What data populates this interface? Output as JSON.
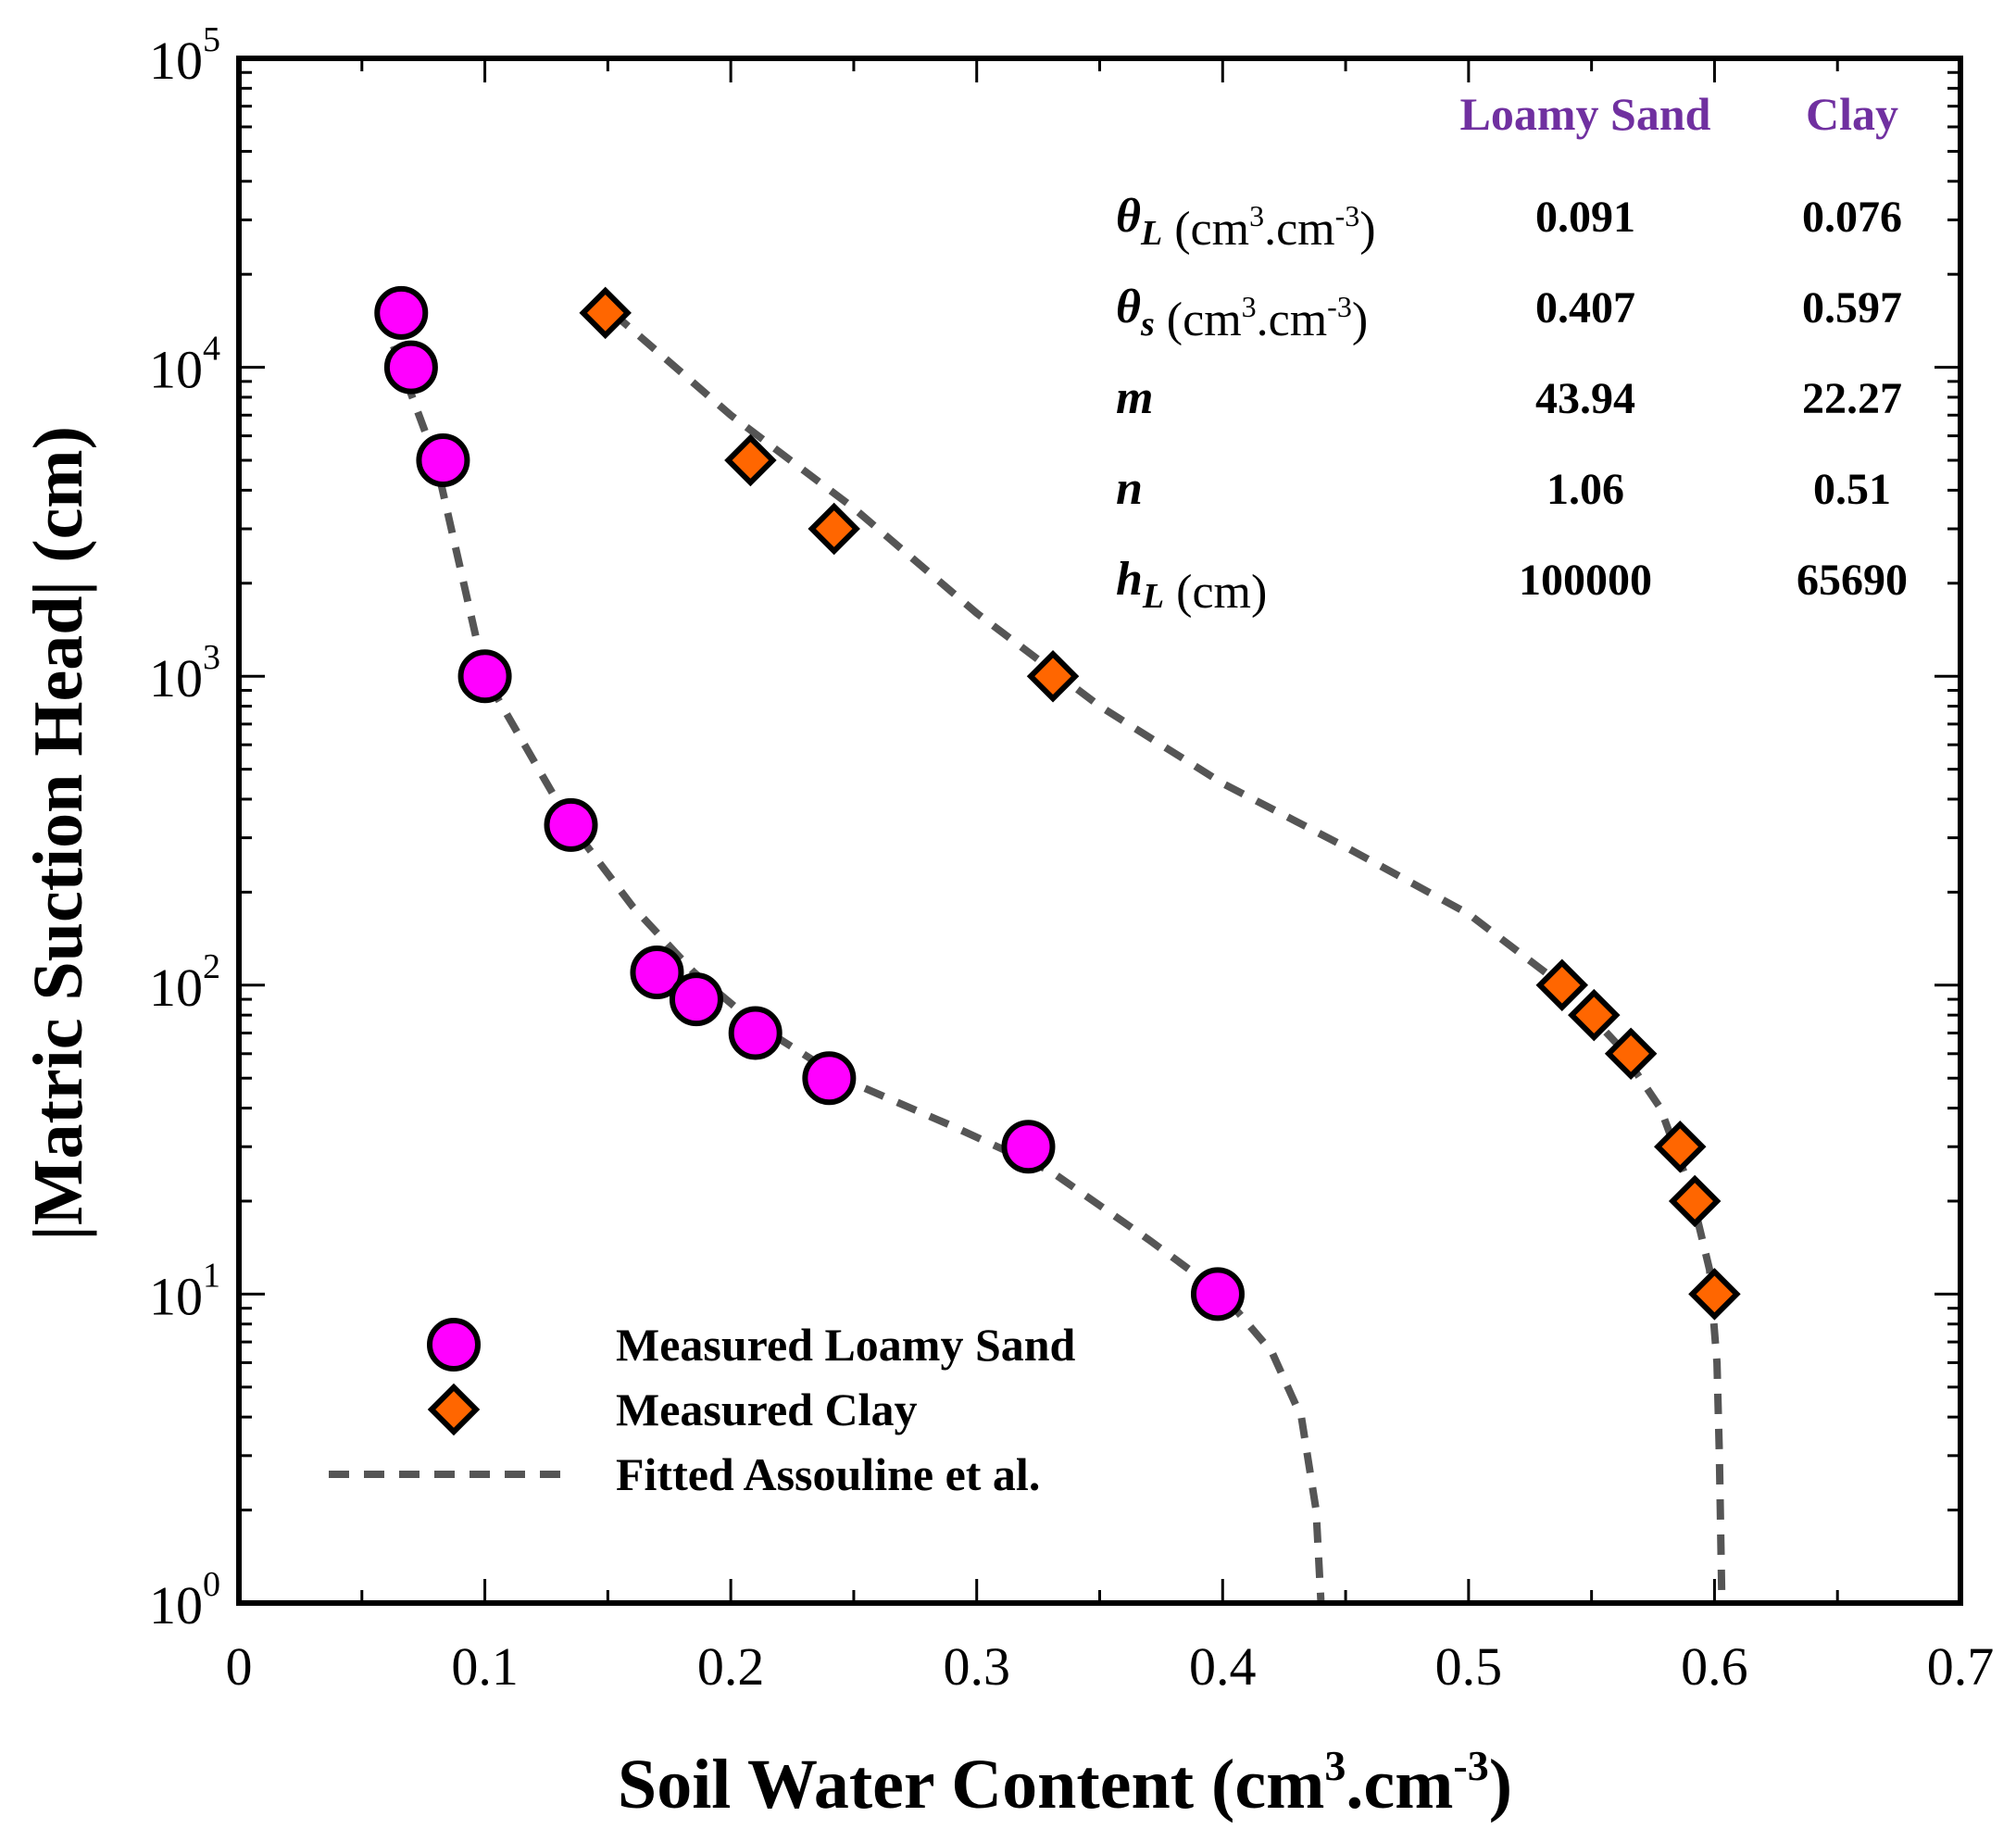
{
  "chart_data": {
    "type": "scatter",
    "title": "",
    "xlabel": "Soil Water Content (cm³.cm⁻³)",
    "xlabel_parts": {
      "main": "Soil Water Content (cm",
      "sup1": "3",
      "mid": ".cm",
      "sup2": "-3",
      "end": ")"
    },
    "ylabel": "|Matric Suction Head| (cm)",
    "xlim": [
      0,
      0.7
    ],
    "ylim": [
      1,
      100000
    ],
    "yscale": "log",
    "x_ticks": [
      "0",
      "0.1",
      "0.2",
      "0.3",
      "0.4",
      "0.5",
      "0.6",
      "0.7"
    ],
    "y_ticks": [
      {
        "base": "10",
        "exp": "0"
      },
      {
        "base": "10",
        "exp": "1"
      },
      {
        "base": "10",
        "exp": "2"
      },
      {
        "base": "10",
        "exp": "3"
      },
      {
        "base": "10",
        "exp": "4"
      },
      {
        "base": "10",
        "exp": "5"
      }
    ],
    "grid": false,
    "legend_position": "bottom-left",
    "series": [
      {
        "name": "Measured Loamy Sand",
        "marker": "circle",
        "color": "#ff00ff",
        "points": [
          [
            0.066,
            15000
          ],
          [
            0.07,
            10000
          ],
          [
            0.083,
            5000
          ],
          [
            0.1,
            1000
          ],
          [
            0.135,
            330
          ],
          [
            0.17,
            110
          ],
          [
            0.186,
            90
          ],
          [
            0.21,
            70
          ],
          [
            0.24,
            50
          ],
          [
            0.321,
            30
          ],
          [
            0.398,
            10
          ]
        ]
      },
      {
        "name": "Measured Clay",
        "marker": "diamond",
        "color": "#ff6600",
        "points": [
          [
            0.149,
            15000
          ],
          [
            0.208,
            5000
          ],
          [
            0.242,
            3000
          ],
          [
            0.331,
            1000
          ],
          [
            0.538,
            100
          ],
          [
            0.551,
            80
          ],
          [
            0.566,
            60
          ],
          [
            0.586,
            30
          ],
          [
            0.592,
            20
          ],
          [
            0.6,
            10
          ]
        ]
      },
      {
        "name": "Fitted Assouline et al.",
        "line": "dashed",
        "color": "#555555",
        "curves": [
          [
            [
              0.058,
              15000
            ],
            [
              0.066,
              10000
            ],
            [
              0.08,
              5000
            ],
            [
              0.1,
              1000
            ],
            [
              0.135,
              330
            ],
            [
              0.16,
              180
            ],
            [
              0.185,
              110
            ],
            [
              0.21,
              75
            ],
            [
              0.245,
              50
            ],
            [
              0.29,
              35
            ],
            [
              0.33,
              25
            ],
            [
              0.37,
              15
            ],
            [
              0.4,
              10
            ],
            [
              0.42,
              6.5
            ],
            [
              0.432,
              4
            ],
            [
              0.438,
              2
            ],
            [
              0.44,
              1
            ]
          ],
          [
            [
              0.152,
              15000
            ],
            [
              0.2,
              7000
            ],
            [
              0.25,
              3500
            ],
            [
              0.3,
              1600
            ],
            [
              0.35,
              800
            ],
            [
              0.4,
              450
            ],
            [
              0.45,
              280
            ],
            [
              0.5,
              170
            ],
            [
              0.538,
              100
            ],
            [
              0.56,
              65
            ],
            [
              0.578,
              40
            ],
            [
              0.59,
              22
            ],
            [
              0.598,
              12
            ],
            [
              0.601,
              6
            ],
            [
              0.602,
              3
            ],
            [
              0.603,
              1
            ]
          ]
        ]
      }
    ],
    "parameter_table": {
      "columns": [
        "Loamy Sand",
        "Clay"
      ],
      "rows": [
        {
          "symbol": "θ",
          "subscript": "L",
          "unit_main": " (cm",
          "unit_sup1": "3",
          "unit_mid": ".cm",
          "unit_sup2": "-3",
          "unit_end": ")",
          "values": [
            "0.091",
            "0.076"
          ]
        },
        {
          "symbol": "θ",
          "subscript": "s",
          "unit_main": " (cm",
          "unit_sup1": "3",
          "unit_mid": ".cm",
          "unit_sup2": "-3",
          "unit_end": ")",
          "values": [
            "0.407",
            "0.597"
          ]
        },
        {
          "symbol": "m",
          "values": [
            "43.94",
            "22.27"
          ]
        },
        {
          "symbol": "n",
          "values": [
            "1.06",
            "0.51"
          ]
        },
        {
          "symbol": "h",
          "subscript": "L",
          "unit_main": " (cm)",
          "values": [
            "100000",
            "65690"
          ]
        }
      ]
    }
  }
}
